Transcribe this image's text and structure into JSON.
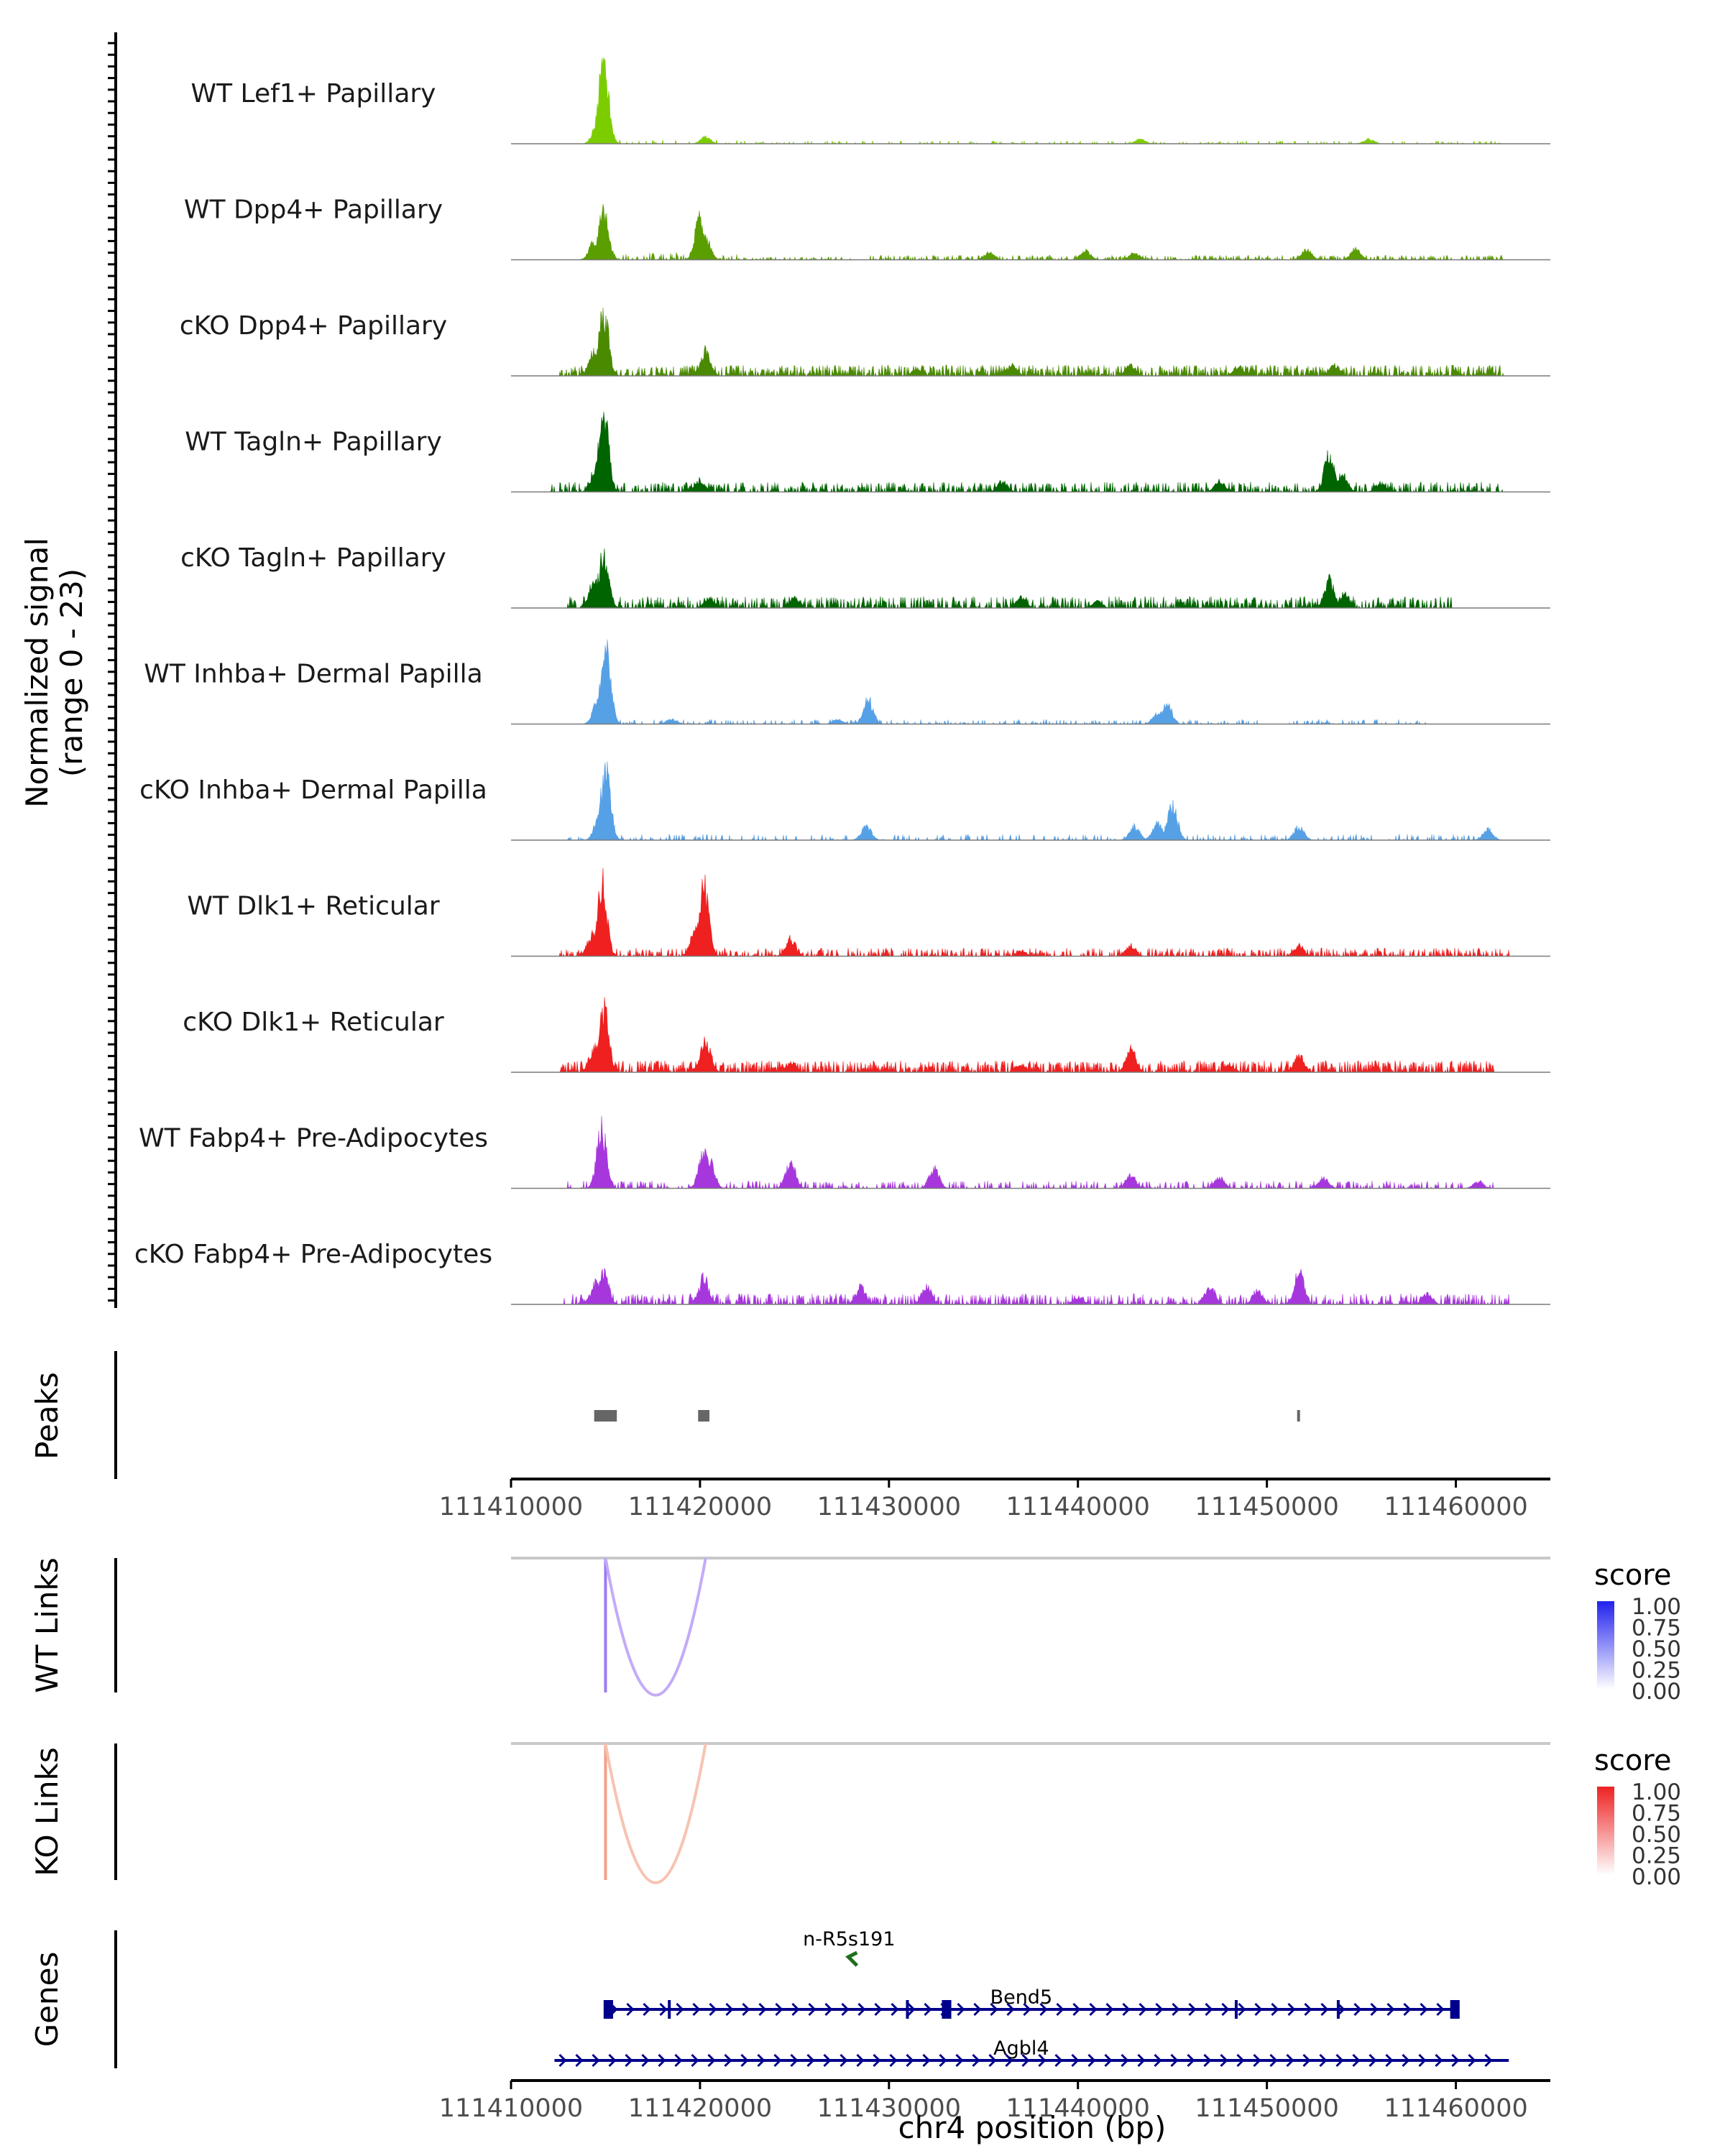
{
  "chart_data": {
    "type": "area",
    "title": "",
    "signal_axis_label": "Normalized signal",
    "signal_range_label": "(range 0 - 23)",
    "ylim": [
      0,
      23
    ],
    "xlim": [
      111410000,
      111465000
    ],
    "xlabel": "chr4 position (bp)",
    "x_ticks": [
      111410000,
      111420000,
      111430000,
      111440000,
      111450000,
      111460000
    ],
    "x_tick_labels": [
      "111410000",
      "111420000",
      "111430000",
      "111440000",
      "111450000",
      "111460000"
    ],
    "tracks": [
      {
        "name": "WT Lef1+ Papillary",
        "color": "#7CCD00",
        "dense": 0.15,
        "peaks": [
          [
            111414900,
            23
          ],
          [
            111414600,
            6
          ],
          [
            111420300,
            2
          ],
          [
            111443300,
            1.3
          ],
          [
            111455400,
            1.3
          ]
        ],
        "background": [
          [
            111415000,
            111422000,
            0.5
          ],
          [
            111422000,
            111462500,
            0.35
          ]
        ]
      },
      {
        "name": "WT Dpp4+ Papillary",
        "color": "#5A9E00",
        "dense": 0.35,
        "peaks": [
          [
            111414900,
            13.5
          ],
          [
            111414400,
            5
          ],
          [
            111420000,
            12
          ],
          [
            111420300,
            6
          ],
          [
            111443000,
            2
          ],
          [
            111452100,
            2.8
          ],
          [
            111454700,
            3
          ],
          [
            111435300,
            2
          ],
          [
            111440400,
            2.5
          ]
        ],
        "background": [
          [
            111414000,
            111422000,
            0.9
          ],
          [
            111422000,
            111428000,
            0.35
          ],
          [
            111429000,
            111462500,
            0.55
          ]
        ]
      },
      {
        "name": "cKO Dpp4+ Papillary",
        "color": "#4A8A00",
        "dense": 0.6,
        "peaks": [
          [
            111414900,
            18
          ],
          [
            111414400,
            7
          ],
          [
            111420300,
            7
          ],
          [
            111442800,
            3
          ],
          [
            111453600,
            3
          ],
          [
            111436500,
            3
          ],
          [
            111448500,
            2.5
          ],
          [
            111431500,
            2
          ]
        ],
        "background": [
          [
            111412500,
            111462500,
            1.3
          ]
        ]
      },
      {
        "name": "WT Tagln+ Papillary",
        "color": "#006400",
        "dense": 0.45,
        "peaks": [
          [
            111414900,
            23
          ],
          [
            111414500,
            7
          ],
          [
            111453300,
            11
          ],
          [
            111454000,
            5
          ],
          [
            111420000,
            3.5
          ],
          [
            111436000,
            3
          ],
          [
            111447500,
            3
          ],
          [
            111456000,
            2.5
          ]
        ],
        "background": [
          [
            111412000,
            111462500,
            1.2
          ]
        ]
      },
      {
        "name": "cKO Tagln+ Papillary",
        "color": "#006400",
        "dense": 0.5,
        "peaks": [
          [
            111414900,
            16
          ],
          [
            111414400,
            8
          ],
          [
            111453300,
            8
          ],
          [
            111454100,
            4
          ],
          [
            111420500,
            3
          ],
          [
            111425000,
            3
          ],
          [
            111437000,
            3
          ],
          [
            111441000,
            2
          ]
        ],
        "background": [
          [
            111413000,
            111460000,
            1.4
          ]
        ]
      },
      {
        "name": "WT Inhba+ Dermal Papilla",
        "color": "#56A0E6",
        "dense": 0.25,
        "peaks": [
          [
            111415000,
            23
          ],
          [
            111414600,
            7
          ],
          [
            111428900,
            7
          ],
          [
            111444700,
            6
          ],
          [
            111444200,
            3
          ],
          [
            111418500,
            1.3
          ],
          [
            111427300,
            1.3
          ]
        ],
        "background": [
          [
            111415500,
            111458500,
            0.55
          ]
        ]
      },
      {
        "name": "cKO Inhba+ Dermal Papilla",
        "color": "#56A0E6",
        "dense": 0.2,
        "peaks": [
          [
            111415000,
            20
          ],
          [
            111414700,
            8
          ],
          [
            111445000,
            10
          ],
          [
            111444200,
            5
          ],
          [
            111443000,
            4
          ],
          [
            111428800,
            4
          ],
          [
            111451700,
            4
          ],
          [
            111461700,
            3
          ]
        ],
        "background": [
          [
            111412800,
            111462000,
            0.7
          ]
        ]
      },
      {
        "name": "WT Dlk1+ Reticular",
        "color": "#EE2020",
        "dense": 0.4,
        "peaks": [
          [
            111414800,
            21
          ],
          [
            111420200,
            20
          ],
          [
            111419800,
            9
          ],
          [
            111414300,
            6
          ],
          [
            111424800,
            5
          ],
          [
            111451700,
            3
          ],
          [
            111442800,
            3
          ],
          [
            111437000,
            1.5
          ]
        ],
        "background": [
          [
            111412500,
            111462800,
            1
          ]
        ]
      },
      {
        "name": "cKO Dlk1+ Reticular",
        "color": "#EE2020",
        "dense": 0.6,
        "peaks": [
          [
            111414900,
            18.5
          ],
          [
            111414400,
            7
          ],
          [
            111420300,
            9.5
          ],
          [
            111442800,
            6.5
          ],
          [
            111451700,
            4.8
          ],
          [
            111424800,
            3
          ],
          [
            111437000,
            2
          ],
          [
            111448000,
            2
          ]
        ],
        "background": [
          [
            111412500,
            111462000,
            1.4
          ]
        ]
      },
      {
        "name": "WT Fabp4+ Pre-Adipocytes",
        "color": "#A637DC",
        "dense": 0.3,
        "peaks": [
          [
            111414800,
            17
          ],
          [
            111420200,
            10
          ],
          [
            111420500,
            8
          ],
          [
            111424800,
            7
          ],
          [
            111432400,
            6
          ],
          [
            111442800,
            4
          ],
          [
            111447500,
            3
          ],
          [
            111453000,
            3
          ],
          [
            111461200,
            2
          ]
        ],
        "background": [
          [
            111413000,
            111462000,
            0.9
          ]
        ]
      },
      {
        "name": "cKO Fabp4+ Pre-Adipocytes",
        "color": "#A637DC",
        "dense": 0.45,
        "peaks": [
          [
            111414900,
            9
          ],
          [
            111414500,
            6
          ],
          [
            111420200,
            7.5
          ],
          [
            111451700,
            9
          ],
          [
            111428500,
            5
          ],
          [
            111432000,
            5
          ],
          [
            111447000,
            5.5
          ],
          [
            111449500,
            4
          ],
          [
            111440000,
            2
          ],
          [
            111458500,
            3
          ]
        ],
        "background": [
          [
            111412800,
            111462800,
            1.3
          ]
        ]
      }
    ],
    "peaks_track": {
      "label": "Peaks",
      "intervals": [
        [
          111414400,
          111415600
        ],
        [
          111419900,
          111420500
        ],
        [
          111451600,
          111451700
        ]
      ]
    },
    "links_tracks": [
      {
        "label": "WT Links",
        "legend_title": "score",
        "colors": [
          "#FFFFFF",
          "#2222EE"
        ],
        "legend_ticks": [
          "1.00",
          "0.75",
          "0.50",
          "0.25",
          "0.00"
        ],
        "links": [
          {
            "start": 111415000,
            "end": 111420300,
            "score": 0.3,
            "line_color": "#C3ABF8"
          }
        ],
        "anchor_color": "#9A7CF0"
      },
      {
        "label": "KO Links",
        "legend_title": "score",
        "colors": [
          "#FFFFFF",
          "#EE2222"
        ],
        "legend_ticks": [
          "1.00",
          "0.75",
          "0.50",
          "0.25",
          "0.00"
        ],
        "links": [
          {
            "start": 111415000,
            "end": 111420300,
            "score": 0.3,
            "line_color": "#F7C3B2"
          }
        ],
        "anchor_color": "#F4A088"
      }
    ],
    "genes_track": {
      "label": "Genes",
      "genes": [
        {
          "name": "n-R5s191",
          "start": 111427700,
          "end": 111428000,
          "strand": "-",
          "color": "#1E6E1E",
          "row": 0,
          "exons": []
        },
        {
          "name": "Bend5",
          "start": 111415000,
          "end": 111460000,
          "strand": "+",
          "color": "#00008B",
          "row": 1,
          "exons": [
            [
              111414900,
              111415400
            ],
            [
              111418300,
              111418400
            ],
            [
              111430900,
              111431000
            ],
            [
              111432800,
              111433300
            ],
            [
              111448300,
              111448400
            ],
            [
              111453700,
              111453800
            ],
            [
              111459700,
              111460200
            ]
          ]
        },
        {
          "name": "Agbl4",
          "start": 111412300,
          "end": 111462800,
          "strand": "+",
          "color": "#00008B",
          "row": 2,
          "exons": []
        }
      ]
    }
  }
}
